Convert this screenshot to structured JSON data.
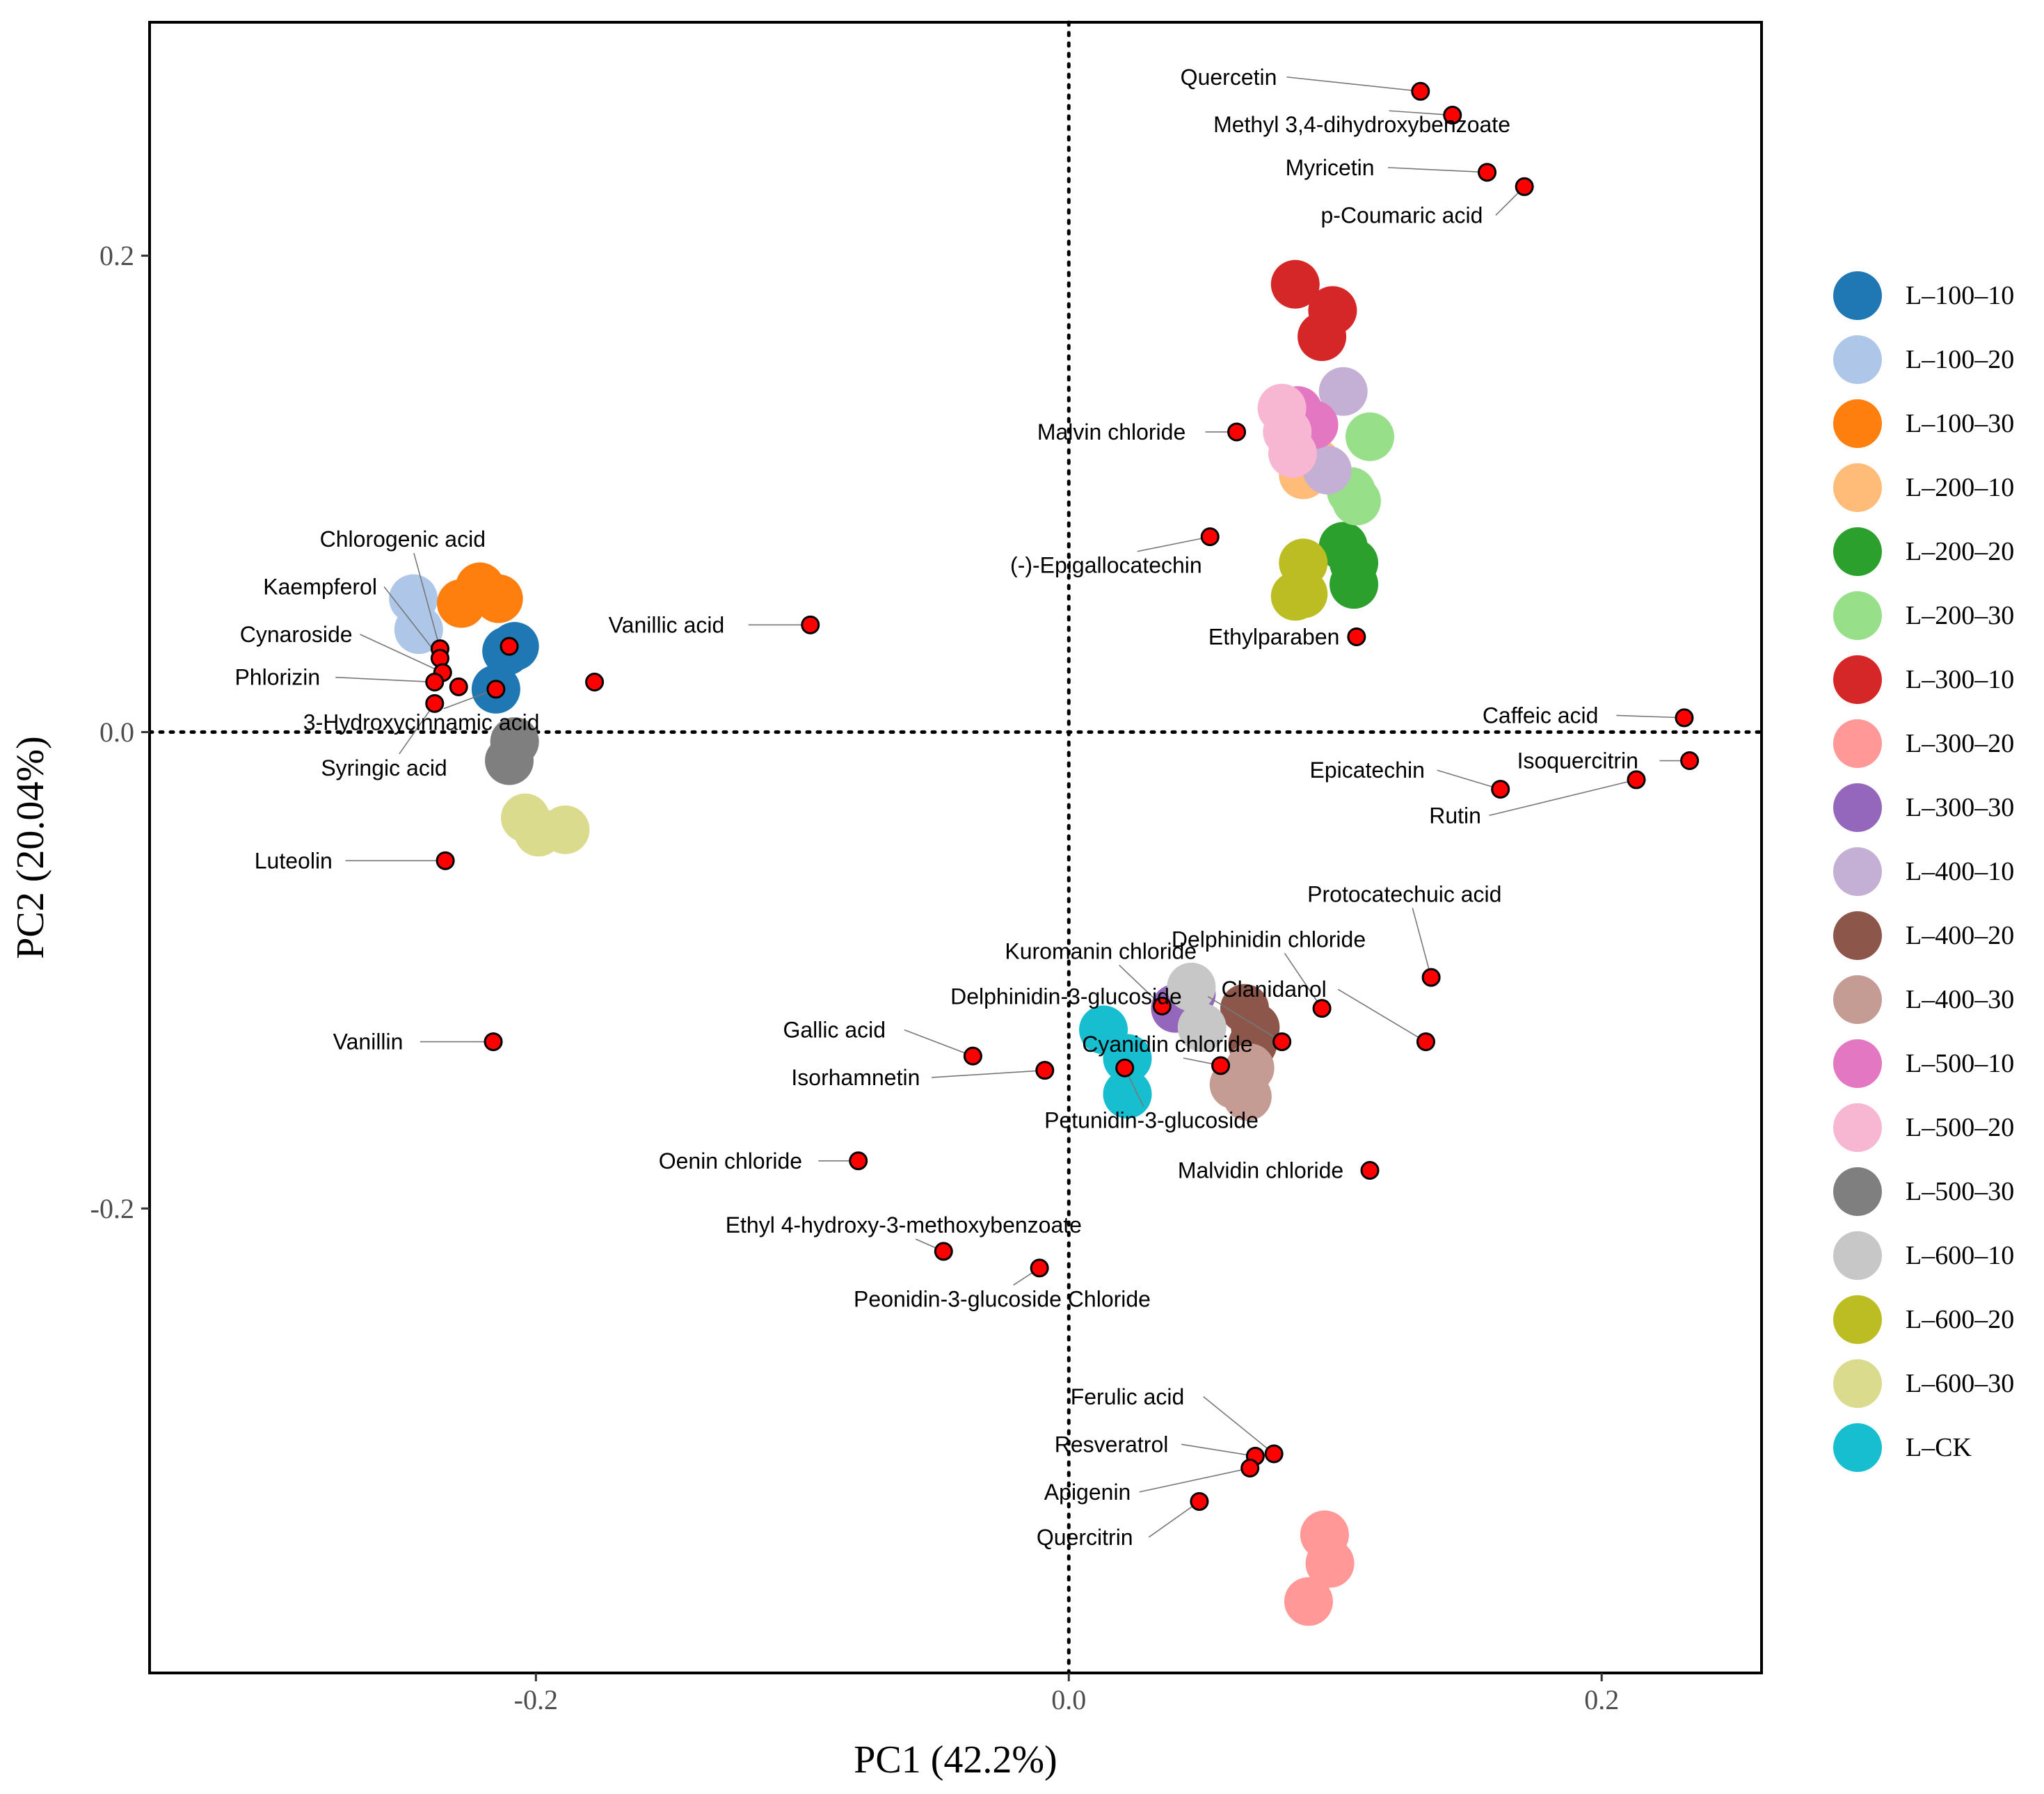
{
  "chart_data": {
    "type": "scatter",
    "title": "",
    "xlabel": "PC1 (42.2%)",
    "ylabel": "PC2 (20.04%)",
    "xlim": [
      -0.345,
      0.26
    ],
    "ylim": [
      -0.395,
      0.298
    ],
    "xticks": [
      {
        "value": -0.2,
        "label": "-0.2"
      },
      {
        "value": 0.0,
        "label": "0.0"
      },
      {
        "value": 0.2,
        "label": "0.2"
      }
    ],
    "yticks": [
      {
        "value": 0.2,
        "label": "0.2"
      },
      {
        "value": 0.0,
        "label": "0.0"
      },
      {
        "value": -0.2,
        "label": "-0.2"
      }
    ],
    "reference_lines": {
      "x": 0,
      "y": 0,
      "style": "dotted"
    },
    "legend_position": "right",
    "groups": [
      {
        "name": "L–100–10",
        "color": "#1F77B4",
        "points": [
          [
            -0.208,
            0.036
          ],
          [
            -0.211,
            0.034
          ],
          [
            -0.215,
            0.018
          ]
        ]
      },
      {
        "name": "L–100–20",
        "color": "#AEC7E8",
        "points": [
          [
            -0.246,
            0.056
          ],
          [
            -0.244,
            0.043
          ]
        ]
      },
      {
        "name": "L–100–30",
        "color": "#FF7F0E",
        "points": [
          [
            -0.221,
            0.061
          ],
          [
            -0.214,
            0.056
          ],
          [
            -0.228,
            0.054
          ]
        ]
      },
      {
        "name": "L–200–10",
        "color": "#FFBB78",
        "points": [
          [
            0.088,
            0.108
          ],
          [
            0.093,
            0.113
          ]
        ]
      },
      {
        "name": "L–200–20",
        "color": "#2CA02C",
        "points": [
          [
            0.103,
            0.078
          ],
          [
            0.107,
            0.071
          ],
          [
            0.107,
            0.062
          ]
        ]
      },
      {
        "name": "L–200–30",
        "color": "#98DF8A",
        "points": [
          [
            0.113,
            0.124
          ],
          [
            0.106,
            0.101
          ],
          [
            0.108,
            0.097
          ]
        ]
      },
      {
        "name": "L–300–10",
        "color": "#D62728",
        "points": [
          [
            0.085,
            0.188
          ],
          [
            0.099,
            0.177
          ],
          [
            0.095,
            0.166
          ]
        ]
      },
      {
        "name": "L–300–20",
        "color": "#FF9896",
        "points": [
          [
            0.096,
            -0.337
          ],
          [
            0.098,
            -0.349
          ],
          [
            0.09,
            -0.365
          ]
        ]
      },
      {
        "name": "L–300–30",
        "color": "#9467BD",
        "points": [
          [
            0.04,
            -0.116
          ],
          [
            0.046,
            -0.11
          ]
        ]
      },
      {
        "name": "L–400–10",
        "color": "#C5B0D5",
        "points": [
          [
            0.103,
            0.143
          ],
          [
            0.097,
            0.11
          ]
        ]
      },
      {
        "name": "L–400–20",
        "color": "#8C564B",
        "points": [
          [
            0.066,
            -0.116
          ],
          [
            0.07,
            -0.124
          ],
          [
            0.069,
            -0.131
          ]
        ]
      },
      {
        "name": "L–400–30",
        "color": "#C49C94",
        "points": [
          [
            0.068,
            -0.141
          ],
          [
            0.062,
            -0.148
          ],
          [
            0.067,
            -0.153
          ]
        ]
      },
      {
        "name": "L–500–10",
        "color": "#E377C2",
        "points": [
          [
            0.086,
            0.135
          ],
          [
            0.092,
            0.129
          ]
        ]
      },
      {
        "name": "L–500–20",
        "color": "#F7B6D2",
        "points": [
          [
            0.08,
            0.136
          ],
          [
            0.082,
            0.126
          ],
          [
            0.084,
            0.117
          ]
        ]
      },
      {
        "name": "L–500–30",
        "color": "#7F7F7F",
        "points": [
          [
            -0.208,
            -0.004
          ],
          [
            -0.21,
            -0.012
          ]
        ]
      },
      {
        "name": "L–600–10",
        "color": "#C7C7C7",
        "points": [
          [
            0.046,
            -0.107
          ],
          [
            0.05,
            -0.124
          ]
        ]
      },
      {
        "name": "L–600–20",
        "color": "#BCBD22",
        "points": [
          [
            0.088,
            0.071
          ],
          [
            0.085,
            0.057
          ],
          [
            0.088,
            0.058
          ]
        ]
      },
      {
        "name": "L–600–30",
        "color": "#DBDB8D",
        "points": [
          [
            -0.204,
            -0.036
          ],
          [
            -0.199,
            -0.042
          ],
          [
            -0.189,
            -0.041
          ]
        ]
      },
      {
        "name": "L–CK",
        "color": "#17BECF",
        "points": [
          [
            0.013,
            -0.125
          ],
          [
            0.022,
            -0.137
          ],
          [
            0.022,
            -0.152
          ]
        ]
      }
    ],
    "compounds": [
      {
        "name": "Quercetin",
        "x": 0.132,
        "y": 0.269,
        "label_x": 0.06,
        "label_y": 0.275
      },
      {
        "name": "Methyl 3,4-dihydroxybenzoate",
        "x": 0.144,
        "y": 0.259,
        "label_x": 0.11,
        "label_y": 0.255
      },
      {
        "name": "Myricetin",
        "x": 0.157,
        "y": 0.235,
        "label_x": 0.098,
        "label_y": 0.237
      },
      {
        "name": "p-Coumaric acid",
        "x": 0.171,
        "y": 0.229,
        "label_x": 0.125,
        "label_y": 0.217
      },
      {
        "name": "Malvin chloride",
        "x": 0.063,
        "y": 0.126,
        "label_x": 0.016,
        "label_y": 0.126
      },
      {
        "name": "(-)-Epigallocatechin",
        "x": 0.053,
        "y": 0.082,
        "label_x": 0.014,
        "label_y": 0.07
      },
      {
        "name": "Ethylparaben",
        "x": 0.108,
        "y": 0.04,
        "label_x": 0.077,
        "label_y": 0.04
      },
      {
        "name": "Caffeic acid",
        "x": 0.231,
        "y": 0.006,
        "label_x": 0.177,
        "label_y": 0.007
      },
      {
        "name": "Isoquercitrin",
        "x": 0.233,
        "y": -0.012,
        "label_x": 0.191,
        "label_y": -0.012
      },
      {
        "name": "Epicatechin",
        "x": 0.162,
        "y": -0.024,
        "label_x": 0.112,
        "label_y": -0.016
      },
      {
        "name": "Rutin",
        "x": 0.213,
        "y": -0.02,
        "label_x": 0.145,
        "label_y": -0.035
      },
      {
        "name": "Protocatechuic acid",
        "x": 0.136,
        "y": -0.103,
        "label_x": 0.126,
        "label_y": -0.068
      },
      {
        "name": "Delphinidin chloride",
        "x": 0.095,
        "y": -0.116,
        "label_x": 0.075,
        "label_y": -0.087
      },
      {
        "name": "Clanidanol",
        "x": 0.134,
        "y": -0.13,
        "label_x": 0.077,
        "label_y": -0.108
      },
      {
        "name": "Kuromanin chloride",
        "x": 0.035,
        "y": -0.115,
        "label_x": 0.012,
        "label_y": -0.092
      },
      {
        "name": "Delphinidin-3-glucoside",
        "x": 0.08,
        "y": -0.13,
        "label_x": -0.001,
        "label_y": -0.111
      },
      {
        "name": "Cyanidin chloride",
        "x": 0.057,
        "y": -0.14,
        "label_x": 0.037,
        "label_y": -0.131
      },
      {
        "name": "Petunidin-3-glucoside",
        "x": 0.021,
        "y": -0.141,
        "label_x": 0.031,
        "label_y": -0.163
      },
      {
        "name": "Gallic acid",
        "x": -0.036,
        "y": -0.136,
        "label_x": -0.088,
        "label_y": -0.125
      },
      {
        "name": "Isorhamnetin",
        "x": -0.009,
        "y": -0.142,
        "label_x": -0.08,
        "label_y": -0.145
      },
      {
        "name": "Malvidin chloride",
        "x": 0.113,
        "y": -0.184,
        "label_x": 0.072,
        "label_y": -0.184
      },
      {
        "name": "Oenin chloride",
        "x": -0.079,
        "y": -0.18,
        "label_x": -0.127,
        "label_y": -0.18
      },
      {
        "name": "Ethyl 4-hydroxy-3-methoxybenzoate",
        "x": -0.047,
        "y": -0.218,
        "label_x": -0.062,
        "label_y": -0.207
      },
      {
        "name": "Peonidin-3-glucoside Chloride",
        "x": -0.011,
        "y": -0.225,
        "label_x": -0.025,
        "label_y": -0.238
      },
      {
        "name": "Ferulic acid",
        "x": 0.077,
        "y": -0.303,
        "label_x": 0.022,
        "label_y": -0.279
      },
      {
        "name": "Resveratrol",
        "x": 0.07,
        "y": -0.304,
        "label_x": 0.016,
        "label_y": -0.299
      },
      {
        "name": "Apigenin",
        "x": 0.068,
        "y": -0.309,
        "label_x": 0.007,
        "label_y": -0.319
      },
      {
        "name": "Quercitrin",
        "x": 0.049,
        "y": -0.323,
        "label_x": 0.006,
        "label_y": -0.338
      },
      {
        "name": "Vanillic acid",
        "x": -0.097,
        "y": 0.045,
        "label_x": -0.151,
        "label_y": 0.045
      },
      {
        "name": "Chlorogenic acid",
        "x": -0.236,
        "y": 0.035,
        "label_x": -0.25,
        "label_y": 0.081
      },
      {
        "name": "Kaempferol",
        "x": -0.236,
        "y": 0.031,
        "label_x": -0.281,
        "label_y": 0.061
      },
      {
        "name": "Cynaroside",
        "x": -0.235,
        "y": 0.025,
        "label_x": -0.29,
        "label_y": 0.041
      },
      {
        "name": "Phlorizin",
        "x": -0.238,
        "y": 0.021,
        "label_x": -0.297,
        "label_y": 0.023
      },
      {
        "name": "3-Hydroxycinnamic acid",
        "x": -0.215,
        "y": 0.018,
        "label_x": -0.243,
        "label_y": 0.004
      },
      {
        "name": "Syringic acid",
        "x": -0.238,
        "y": 0.012,
        "label_x": -0.257,
        "label_y": -0.015
      },
      {
        "name": "Luteolin",
        "x": -0.234,
        "y": -0.054,
        "label_x": -0.291,
        "label_y": -0.054
      },
      {
        "name": "Vanillin",
        "x": -0.216,
        "y": -0.13,
        "label_x": -0.263,
        "label_y": -0.13
      },
      {
        "name": "",
        "x": -0.178,
        "y": 0.021,
        "label_x": null,
        "label_y": null
      },
      {
        "name": "",
        "x": -0.21,
        "y": 0.036,
        "label_x": null,
        "label_y": null
      },
      {
        "name": "",
        "x": -0.229,
        "y": 0.019,
        "label_x": null,
        "label_y": null
      }
    ]
  }
}
